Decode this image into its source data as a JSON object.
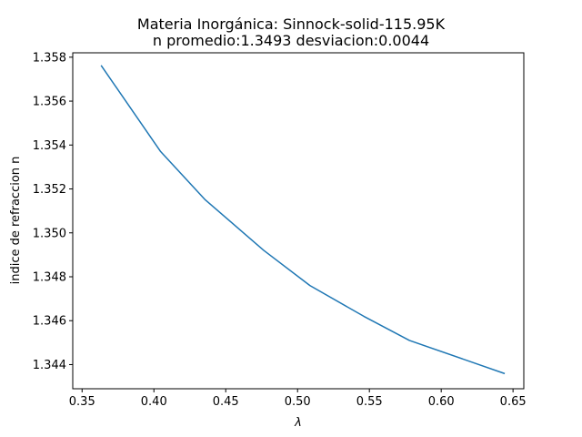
{
  "chart_data": {
    "type": "line",
    "title": "Materia Inorgánica: Sinnock-solid-115.95K",
    "subtitle": "n promedio:1.3493 desviacion:0.0044",
    "xlabel": "λ",
    "ylabel": "indice de refraccion n",
    "xlim": [
      0.3435,
      0.6575
    ],
    "ylim": [
      1.3429,
      1.3582
    ],
    "xticks": [
      0.35,
      0.4,
      0.45,
      0.5,
      0.55,
      0.6,
      0.65
    ],
    "xtick_labels": [
      "0.35",
      "0.40",
      "0.45",
      "0.50",
      "0.55",
      "0.60",
      "0.65"
    ],
    "yticks": [
      1.344,
      1.346,
      1.348,
      1.35,
      1.352,
      1.354,
      1.356,
      1.358
    ],
    "ytick_labels": [
      "1.344",
      "1.346",
      "1.348",
      "1.350",
      "1.352",
      "1.354",
      "1.356",
      "1.358"
    ],
    "grid": false,
    "legend": "none",
    "series": [
      {
        "color": "#1f77b4",
        "x": [
          0.3635,
          0.4047,
          0.4358,
          0.4765,
          0.5086,
          0.5461,
          0.5779,
          0.6438
        ],
        "y": [
          1.3576,
          1.3537,
          1.3515,
          1.3492,
          1.3476,
          1.3462,
          1.3451,
          1.3436
        ]
      }
    ]
  }
}
